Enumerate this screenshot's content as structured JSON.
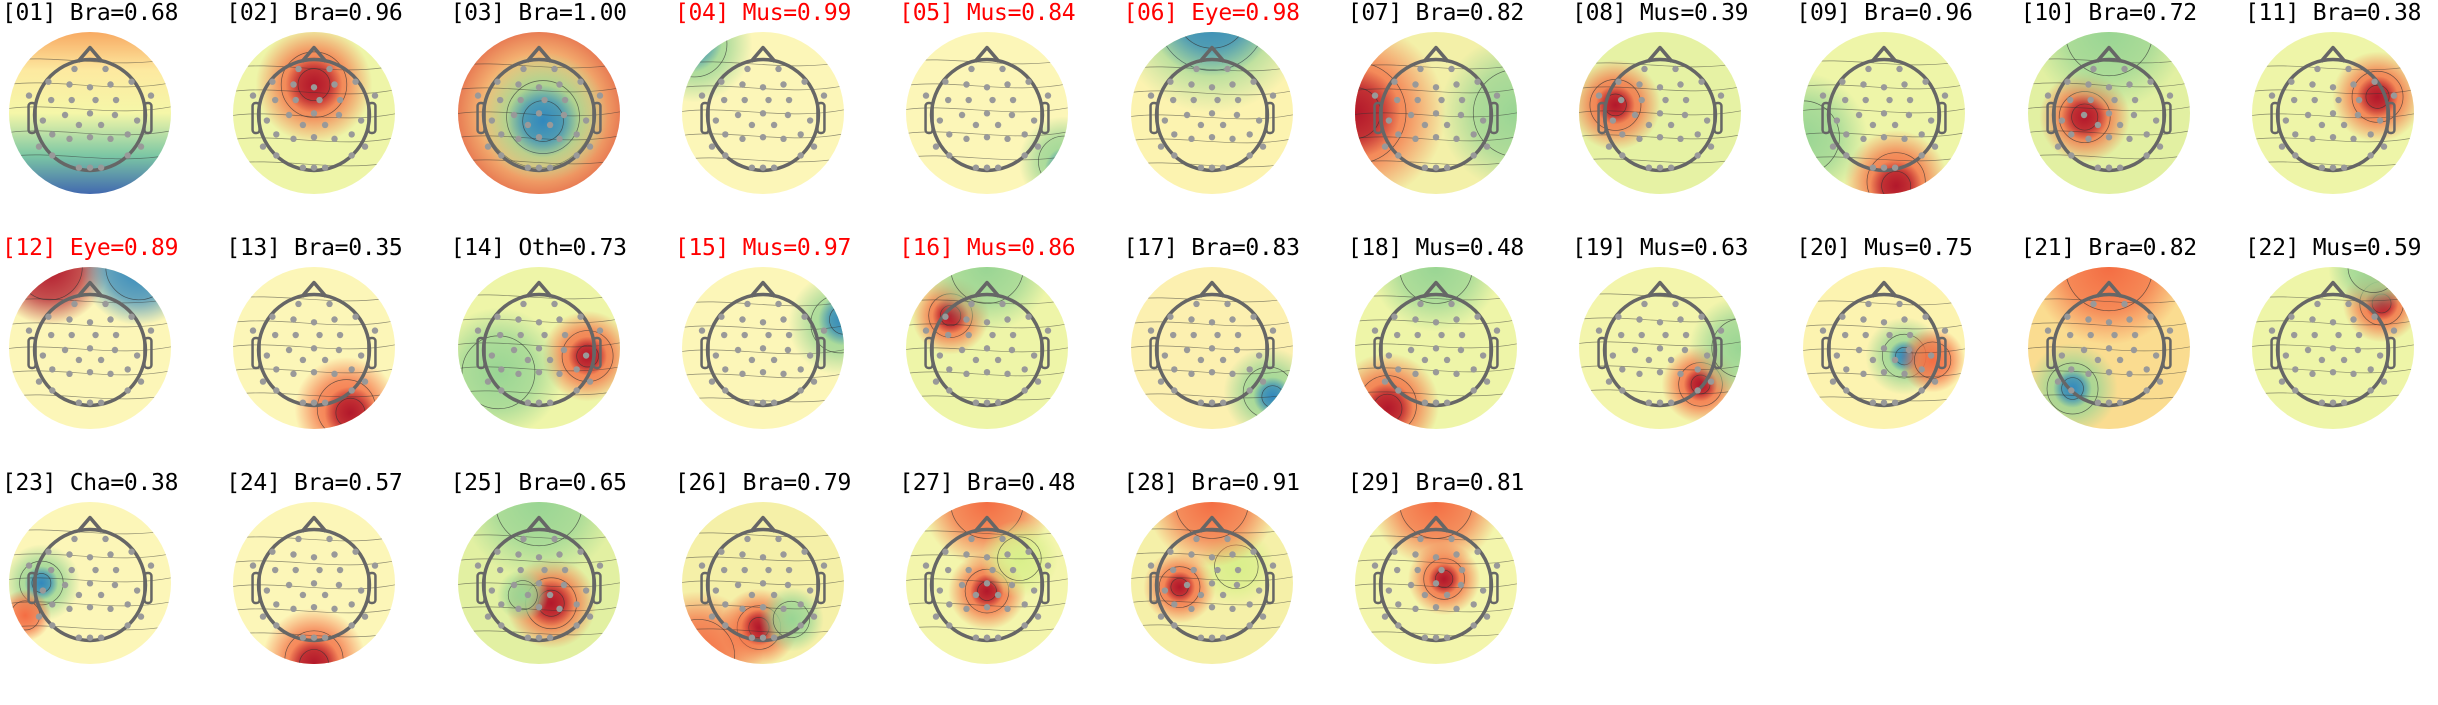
{
  "chart_data": {
    "type": "heatmap",
    "layout": "grid of scalp topographic maps, 11 columns",
    "colormap": "Spectral (red = positive, blue = negative)",
    "flag_color": "#ff0000",
    "normal_color": "#000000",
    "components": [
      {
        "index": "01",
        "label": "Bra",
        "prob": "0.68",
        "flagged": false,
        "title": "[01] Bra=0.68"
      },
      {
        "index": "02",
        "label": "Bra",
        "prob": "0.96",
        "flagged": false,
        "title": "[02] Bra=0.96"
      },
      {
        "index": "03",
        "label": "Bra",
        "prob": "1.00",
        "flagged": false,
        "title": "[03] Bra=1.00"
      },
      {
        "index": "04",
        "label": "Mus",
        "prob": "0.99",
        "flagged": true,
        "title": "[04] Mus=0.99"
      },
      {
        "index": "05",
        "label": "Mus",
        "prob": "0.84",
        "flagged": true,
        "title": "[05] Mus=0.84"
      },
      {
        "index": "06",
        "label": "Eye",
        "prob": "0.98",
        "flagged": true,
        "title": "[06] Eye=0.98"
      },
      {
        "index": "07",
        "label": "Bra",
        "prob": "0.82",
        "flagged": false,
        "title": "[07] Bra=0.82"
      },
      {
        "index": "08",
        "label": "Mus",
        "prob": "0.39",
        "flagged": false,
        "title": "[08] Mus=0.39"
      },
      {
        "index": "09",
        "label": "Bra",
        "prob": "0.96",
        "flagged": false,
        "title": "[09] Bra=0.96"
      },
      {
        "index": "10",
        "label": "Bra",
        "prob": "0.72",
        "flagged": false,
        "title": "[10] Bra=0.72"
      },
      {
        "index": "11",
        "label": "Bra",
        "prob": "0.38",
        "flagged": false,
        "title": "[11] Bra=0.38"
      },
      {
        "index": "12",
        "label": "Eye",
        "prob": "0.89",
        "flagged": true,
        "title": "[12] Eye=0.89"
      },
      {
        "index": "13",
        "label": "Bra",
        "prob": "0.35",
        "flagged": false,
        "title": "[13] Bra=0.35"
      },
      {
        "index": "14",
        "label": "Oth",
        "prob": "0.73",
        "flagged": false,
        "title": "[14] Oth=0.73"
      },
      {
        "index": "15",
        "label": "Mus",
        "prob": "0.97",
        "flagged": true,
        "title": "[15] Mus=0.97"
      },
      {
        "index": "16",
        "label": "Mus",
        "prob": "0.86",
        "flagged": true,
        "title": "[16] Mus=0.86"
      },
      {
        "index": "17",
        "label": "Bra",
        "prob": "0.83",
        "flagged": false,
        "title": "[17] Bra=0.83"
      },
      {
        "index": "18",
        "label": "Mus",
        "prob": "0.48",
        "flagged": false,
        "title": "[18] Mus=0.48"
      },
      {
        "index": "19",
        "label": "Mus",
        "prob": "0.63",
        "flagged": false,
        "title": "[19] Mus=0.63"
      },
      {
        "index": "20",
        "label": "Mus",
        "prob": "0.75",
        "flagged": false,
        "title": "[20] Mus=0.75"
      },
      {
        "index": "21",
        "label": "Bra",
        "prob": "0.82",
        "flagged": false,
        "title": "[21] Bra=0.82"
      },
      {
        "index": "22",
        "label": "Mus",
        "prob": "0.59",
        "flagged": false,
        "title": "[22] Mus=0.59"
      },
      {
        "index": "23",
        "label": "Cha",
        "prob": "0.38",
        "flagged": false,
        "title": "[23] Cha=0.38"
      },
      {
        "index": "24",
        "label": "Bra",
        "prob": "0.57",
        "flagged": false,
        "title": "[24] Bra=0.57"
      },
      {
        "index": "25",
        "label": "Bra",
        "prob": "0.65",
        "flagged": false,
        "title": "[25] Bra=0.65"
      },
      {
        "index": "26",
        "label": "Bra",
        "prob": "0.79",
        "flagged": false,
        "title": "[26] Bra=0.79"
      },
      {
        "index": "27",
        "label": "Bra",
        "prob": "0.48",
        "flagged": false,
        "title": "[27] Bra=0.48"
      },
      {
        "index": "28",
        "label": "Bra",
        "prob": "0.91",
        "flagged": false,
        "title": "[28] Bra=0.91"
      },
      {
        "index": "29",
        "label": "Bra",
        "prob": "0.81",
        "flagged": false,
        "title": "[29] Bra=0.81"
      }
    ]
  }
}
